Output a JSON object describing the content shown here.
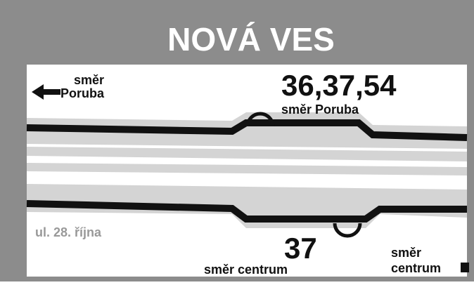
{
  "header": {
    "title": "NOVÁ VES"
  },
  "direction_left": {
    "line1": "směr",
    "line2": "Poruba"
  },
  "stop_top": {
    "lines": "36,37,54",
    "direction": "směr Poruba"
  },
  "street": "ul. 28. října",
  "stop_bottom": {
    "lines": "37",
    "direction": "směr centrum"
  },
  "direction_right": {
    "line1": "směr",
    "line2": "centrum"
  }
}
